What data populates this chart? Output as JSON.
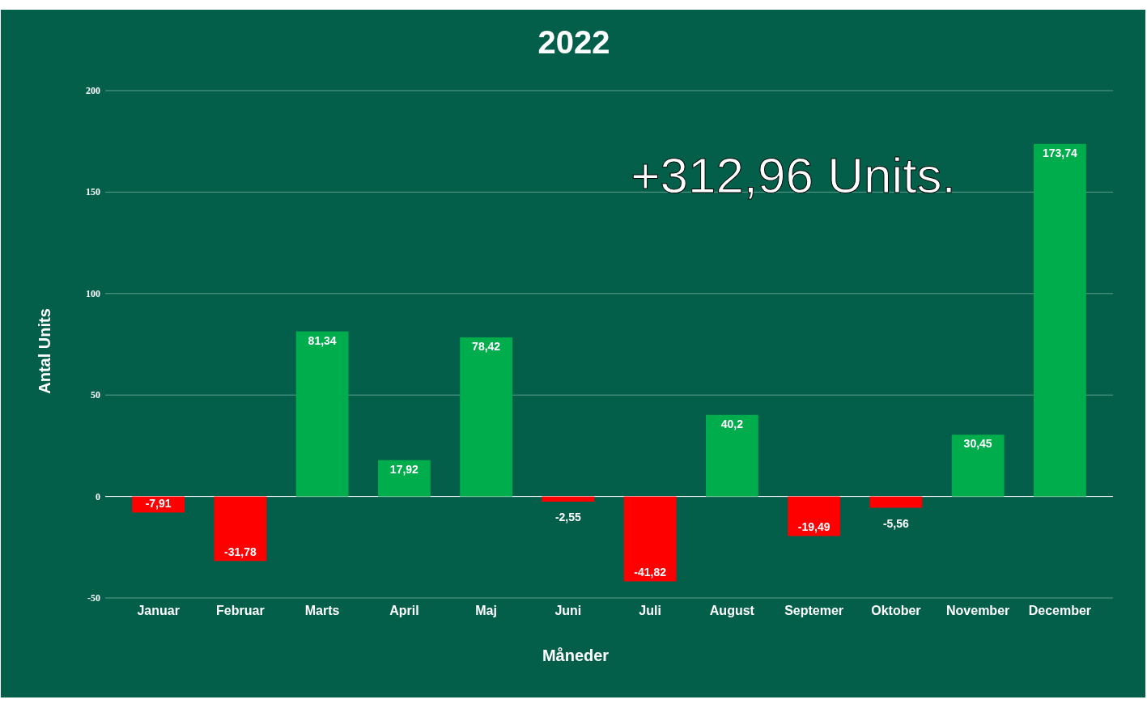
{
  "chart_data": {
    "type": "bar",
    "title": "2022",
    "xlabel": "Måneder",
    "ylabel": "Antal Units",
    "categories": [
      "Januar",
      "Februar",
      "Marts",
      "April",
      "Maj",
      "Juni",
      "Juli",
      "August",
      "Septemer",
      "Oktober",
      "November",
      "December"
    ],
    "values": [
      -7.91,
      -31.78,
      81.34,
      17.92,
      78.42,
      -2.55,
      -41.82,
      40.2,
      -19.49,
      -5.56,
      30.45,
      173.74
    ],
    "value_labels": [
      "-7,91",
      "-31,78",
      "81,34",
      "17,92",
      "78,42",
      "-2,55",
      "-41,82",
      "40,2",
      "-19,49",
      "-5,56",
      "30,45",
      "173,74"
    ],
    "colors": [
      "#ff0000",
      "#ff0000",
      "#00ad4c",
      "#00ad4c",
      "#00ad4c",
      "#ff0000",
      "#ff0000",
      "#00ad4c",
      "#ff0000",
      "#ff0000",
      "#00ad4c",
      "#00ad4c"
    ],
    "ylim": [
      -50,
      200
    ],
    "yticks": [
      -50,
      0,
      50,
      100,
      150,
      200
    ],
    "grid": "y",
    "annotations": [
      "+312,96 Units."
    ]
  }
}
